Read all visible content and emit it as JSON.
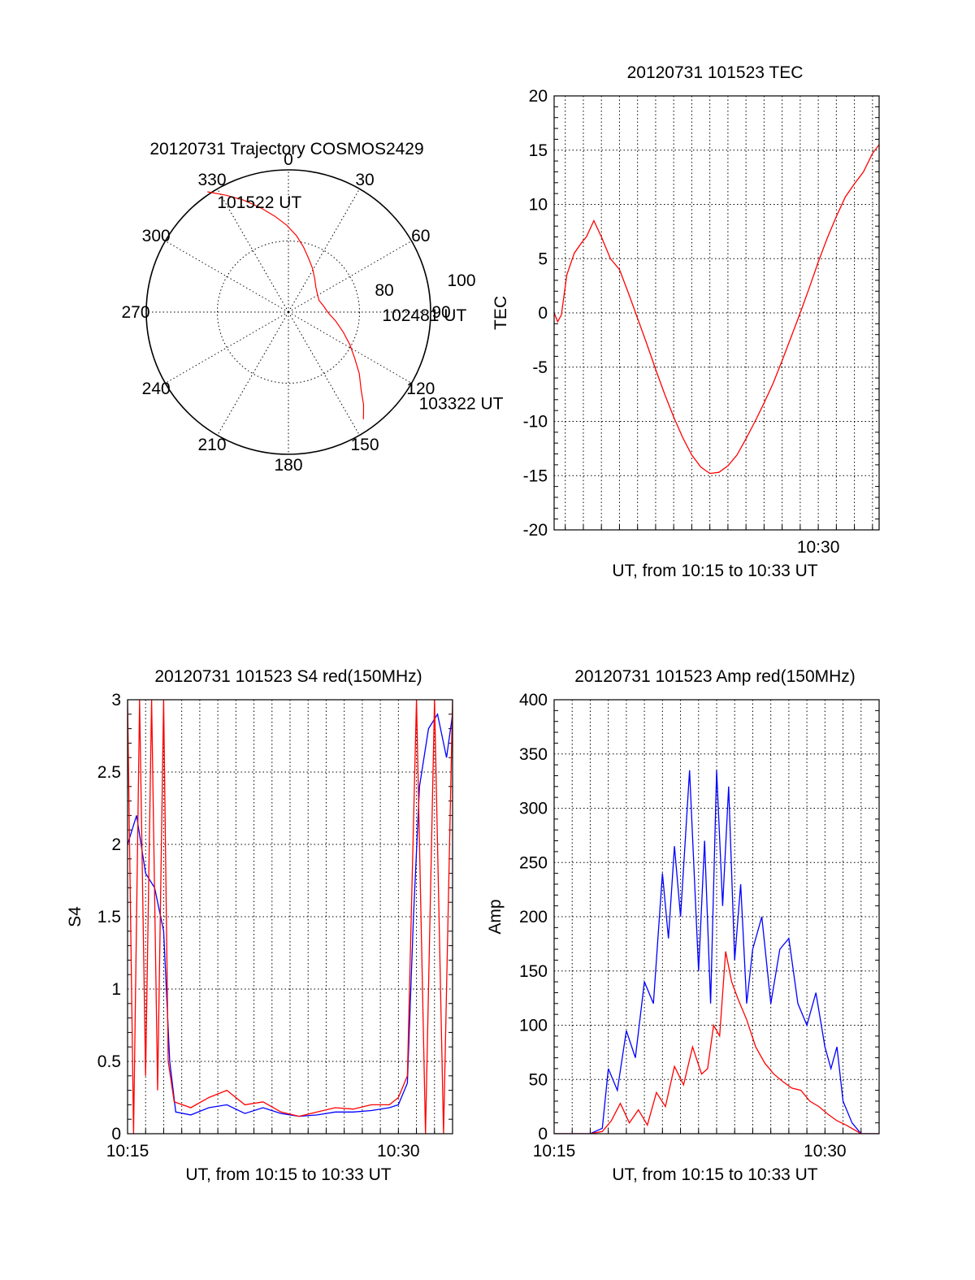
{
  "chart_data": [
    {
      "type": "polar",
      "title": "20120731 Trajectory COSMOS2429",
      "angle_ticks": [
        "0",
        "30",
        "60",
        "90",
        "120",
        "150",
        "180",
        "210",
        "240",
        "270",
        "300",
        "330"
      ],
      "radial_ticks": [
        "80",
        "100"
      ],
      "rlim": [
        100,
        0
      ],
      "grid": true,
      "colors": {
        "track": "#ff0000",
        "grid": "#000000"
      },
      "series": [
        {
          "azimuth": [
            326,
            332,
            338,
            345,
            352,
            359,
            6,
            13,
            21,
            29,
            38,
            48,
            58,
            69,
            80,
            91,
            101,
            110,
            118,
            125,
            131,
            137,
            141,
            145
          ],
          "elevation": [
            -2,
            7,
            15,
            24,
            32,
            39,
            46,
            53,
            60,
            65,
            70,
            74,
            76,
            77,
            75,
            72,
            66,
            59,
            51,
            43,
            34,
            25,
            16,
            8
          ]
        }
      ],
      "annotations": [
        {
          "text": "101522 UT",
          "azimuth": 327,
          "elevation": 8
        },
        {
          "text": "102481 UT",
          "azimuth": 92,
          "elevation": 34
        },
        {
          "text": "103322 UT",
          "azimuth": 125,
          "elevation": -12
        }
      ]
    },
    {
      "type": "line",
      "title": "20120731 101523 TEC",
      "xlabel": "UT, from 10:15 to 10:33 UT",
      "ylabel": "TEC",
      "xlim": [
        "10:15:23",
        "10:33:22"
      ],
      "ylim": [
        -20,
        20
      ],
      "yticks": [
        -20,
        -15,
        -10,
        -5,
        0,
        5,
        10,
        15,
        20
      ],
      "xticks": [
        "10:30"
      ],
      "grid": true,
      "series": [
        {
          "color": "#ff0000",
          "x": [
            "10:15:23",
            "10:15:35",
            "10:15:47",
            "10:16:05",
            "10:16:30",
            "10:16:55",
            "10:17:10",
            "10:17:35",
            "10:18:00",
            "10:18:30",
            "10:19:00",
            "10:19:30",
            "10:20:00",
            "10:20:30",
            "10:21:00",
            "10:21:30",
            "10:22:00",
            "10:22:30",
            "10:23:00",
            "10:23:30",
            "10:24:00",
            "10:24:30",
            "10:25:00",
            "10:25:30",
            "10:26:00",
            "10:26:30",
            "10:27:00",
            "10:27:30",
            "10:28:00",
            "10:28:30",
            "10:29:00",
            "10:29:30",
            "10:30:00",
            "10:30:30",
            "10:31:00",
            "10:31:30",
            "10:32:00",
            "10:32:30",
            "10:33:00",
            "10:33:22"
          ],
          "y": [
            0,
            -0.8,
            -0.2,
            3.5,
            5.5,
            6.5,
            7,
            8.5,
            7,
            5,
            4,
            1.8,
            -0.5,
            -2.8,
            -5.2,
            -7.5,
            -9.6,
            -11.5,
            -13.1,
            -14.2,
            -14.8,
            -14.7,
            -14.1,
            -13.1,
            -11.6,
            -10,
            -8.3,
            -6.5,
            -4.4,
            -2.2,
            0,
            2.3,
            4.7,
            6.9,
            8.9,
            10.7,
            11.9,
            13,
            14.7,
            15.5
          ]
        }
      ]
    },
    {
      "type": "line",
      "title": "20120731 101523 S4 red(150MHz)",
      "xlabel": "UT, from 10:15 to 10:33 UT",
      "ylabel": "S4",
      "xlim": [
        "10:15:00",
        "10:33:00"
      ],
      "ylim": [
        0,
        3
      ],
      "yticks": [
        0,
        0.5,
        1,
        1.5,
        2,
        2.5,
        3
      ],
      "xticks": [
        "10:15",
        "10:30"
      ],
      "grid": true,
      "series": [
        {
          "color": "#0000ff",
          "x": [
            "10:15:00",
            "10:15:30",
            "10:16:00",
            "10:16:30",
            "10:17:00",
            "10:17:20",
            "10:17:40",
            "10:18:30",
            "10:19:30",
            "10:20:30",
            "10:21:30",
            "10:22:30",
            "10:23:30",
            "10:24:30",
            "10:25:30",
            "10:26:30",
            "10:27:30",
            "10:28:30",
            "10:29:30",
            "10:30:00",
            "10:30:30",
            "10:30:50",
            "10:31:10",
            "10:31:40",
            "10:32:10",
            "10:32:40",
            "10:33:00"
          ],
          "y": [
            2.0,
            2.2,
            1.8,
            1.7,
            1.4,
            0.5,
            0.15,
            0.13,
            0.18,
            0.2,
            0.14,
            0.18,
            0.14,
            0.12,
            0.13,
            0.15,
            0.15,
            0.16,
            0.18,
            0.2,
            0.35,
            1.5,
            2.4,
            2.8,
            2.9,
            2.6,
            2.9
          ]
        },
        {
          "color": "#ff0000",
          "x": [
            "10:15:00",
            "10:15:20",
            "10:15:40",
            "10:16:00",
            "10:16:20",
            "10:16:40",
            "10:17:00",
            "10:17:15",
            "10:17:35",
            "10:18:30",
            "10:19:30",
            "10:20:30",
            "10:21:30",
            "10:22:30",
            "10:23:30",
            "10:24:30",
            "10:25:30",
            "10:26:30",
            "10:27:30",
            "10:28:30",
            "10:29:30",
            "10:30:00",
            "10:30:30",
            "10:31:00",
            "10:31:30",
            "10:32:00",
            "10:32:30",
            "10:33:00"
          ],
          "y": [
            3,
            0,
            3,
            0.4,
            3,
            0.3,
            3,
            0.5,
            0.22,
            0.18,
            0.25,
            0.3,
            0.2,
            0.22,
            0.15,
            0.12,
            0.15,
            0.18,
            0.17,
            0.2,
            0.2,
            0.25,
            0.4,
            3,
            0,
            3,
            0,
            3
          ]
        }
      ]
    },
    {
      "type": "line",
      "title": "20120731 101523 Amp red(150MHz)",
      "xlabel": "UT, from 10:15 to 10:33 UT",
      "ylabel": "Amp",
      "xlim": [
        "10:15:00",
        "10:33:00"
      ],
      "ylim": [
        0,
        400
      ],
      "yticks": [
        0,
        50,
        100,
        150,
        200,
        250,
        300,
        350,
        400
      ],
      "xticks": [
        "10:15",
        "10:30"
      ],
      "grid": true,
      "series": [
        {
          "color": "#0000ff",
          "x": [
            "10:15:00",
            "10:17:00",
            "10:17:40",
            "10:18:00",
            "10:18:30",
            "10:19:00",
            "10:19:30",
            "10:20:00",
            "10:20:30",
            "10:21:00",
            "10:21:20",
            "10:21:40",
            "10:22:00",
            "10:22:30",
            "10:23:00",
            "10:23:20",
            "10:23:40",
            "10:24:00",
            "10:24:20",
            "10:24:40",
            "10:25:00",
            "10:25:20",
            "10:25:40",
            "10:26:00",
            "10:26:30",
            "10:27:00",
            "10:27:30",
            "10:28:00",
            "10:28:30",
            "10:29:00",
            "10:29:30",
            "10:30:00",
            "10:30:20",
            "10:30:40",
            "10:31:00",
            "10:31:30",
            "10:32:00",
            "10:33:00"
          ],
          "y": [
            0,
            0,
            5,
            60,
            40,
            95,
            70,
            140,
            120,
            240,
            180,
            265,
            200,
            335,
            150,
            270,
            120,
            335,
            210,
            320,
            160,
            230,
            120,
            170,
            200,
            120,
            170,
            180,
            120,
            100,
            130,
            80,
            60,
            80,
            30,
            10,
            0,
            0
          ]
        },
        {
          "color": "#ff0000",
          "x": [
            "10:15:00",
            "10:17:00",
            "10:17:40",
            "10:18:10",
            "10:18:40",
            "10:19:10",
            "10:19:40",
            "10:20:10",
            "10:20:40",
            "10:21:10",
            "10:21:40",
            "10:22:10",
            "10:22:40",
            "10:23:10",
            "10:23:30",
            "10:23:50",
            "10:24:10",
            "10:24:30",
            "10:24:50",
            "10:25:10",
            "10:25:40",
            "10:26:10",
            "10:26:40",
            "10:27:10",
            "10:27:40",
            "10:28:10",
            "10:28:40",
            "10:29:10",
            "10:29:40",
            "10:30:10",
            "10:30:40",
            "10:31:10",
            "10:32:00",
            "10:33:00"
          ],
          "y": [
            0,
            0,
            2,
            12,
            28,
            10,
            22,
            8,
            38,
            25,
            62,
            45,
            80,
            55,
            60,
            100,
            90,
            168,
            140,
            125,
            105,
            80,
            65,
            55,
            48,
            42,
            40,
            30,
            25,
            18,
            12,
            8,
            0,
            0
          ]
        }
      ]
    }
  ]
}
